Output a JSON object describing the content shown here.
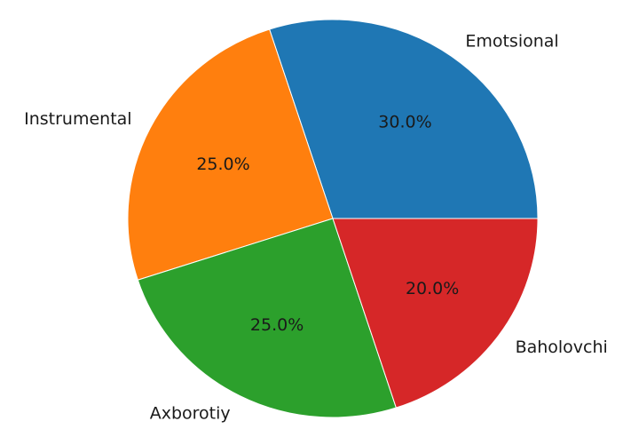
{
  "chart_data": {
    "type": "pie",
    "categories": [
      "Emotsional",
      "Instrumental",
      "Axborotiy",
      "Baholovchi"
    ],
    "values": [
      30.0,
      25.0,
      25.0,
      20.0
    ],
    "value_labels": [
      "30.0%",
      "25.0%",
      "25.0%",
      "20.0%"
    ],
    "colors": [
      "#1f77b4",
      "#ff7f0e",
      "#2ca02c",
      "#d62728"
    ],
    "start_angle_deg": 0,
    "direction": "counterclockwise",
    "legend": "none"
  }
}
